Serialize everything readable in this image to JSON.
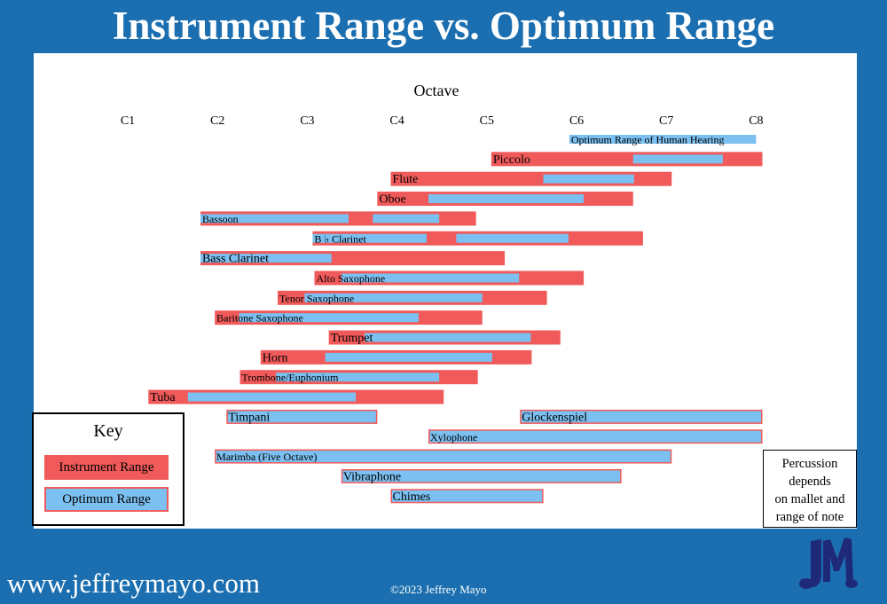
{
  "title": "Instrument Range vs. Optimum Range",
  "footer": {
    "url": "www.jeffreymayo.com",
    "copyright": "©2023 Jeffrey Mayo"
  },
  "key": {
    "title": "Key",
    "instrument_label": "Instrument Range",
    "optimum_label": "Optimum Range"
  },
  "percussion_note": [
    "Percussion",
    "depends",
    "on mallet and",
    "range of note"
  ],
  "colors": {
    "background": "#1b6fb0",
    "instrument": "#f05a5a",
    "optimum": "#7bc0f0",
    "text": "#000000"
  },
  "chart_data": {
    "type": "bar",
    "orientation": "horizontal-range",
    "xlabel": "Octave",
    "xticks": [
      "C1",
      "C2",
      "C3",
      "C4",
      "C5",
      "C6",
      "C7",
      "C8"
    ],
    "xlim": [
      1,
      8
    ],
    "units": "octave (C1 = 1, C8 = 8)",
    "rows": [
      {
        "name": "Optimum Range of Human Hearing",
        "instrument": null,
        "optimum": [
          [
            5.92,
            8.0
          ]
        ]
      },
      {
        "name": "Piccolo",
        "instrument": [
          5.05,
          8.07
        ],
        "optimum": [
          [
            6.63,
            7.63
          ]
        ]
      },
      {
        "name": "Flute",
        "instrument": [
          3.93,
          7.06
        ],
        "optimum": [
          [
            5.63,
            6.64
          ]
        ]
      },
      {
        "name": "Oboe",
        "instrument": [
          3.78,
          6.63
        ],
        "optimum": [
          [
            4.35,
            6.08
          ]
        ]
      },
      {
        "name": "Bassoon",
        "instrument": [
          1.81,
          4.88
        ],
        "optimum": [
          [
            1.81,
            3.46
          ],
          [
            3.73,
            4.47
          ]
        ]
      },
      {
        "name": "B ♭ Clarinet",
        "instrument": [
          3.06,
          6.74
        ],
        "optimum": [
          [
            3.06,
            4.33
          ],
          [
            4.66,
            5.91
          ]
        ]
      },
      {
        "name": "Bass Clarinet",
        "instrument": [
          1.81,
          5.2
        ],
        "optimum": [
          [
            1.81,
            3.27
          ]
        ]
      },
      {
        "name": "Alto Saxophone",
        "instrument": [
          3.08,
          6.08
        ],
        "optimum": [
          [
            3.38,
            5.36
          ]
        ]
      },
      {
        "name": "Tenor Saxophone",
        "instrument": [
          2.67,
          5.67
        ],
        "optimum": [
          [
            2.97,
            4.95
          ]
        ]
      },
      {
        "name": "Baritone Saxophone",
        "instrument": [
          1.97,
          4.95
        ],
        "optimum": [
          [
            2.24,
            4.24
          ]
        ]
      },
      {
        "name": "Trumpet",
        "instrument": [
          3.24,
          5.82
        ],
        "optimum": [
          [
            3.64,
            5.49
          ]
        ]
      },
      {
        "name": "Horn",
        "instrument": [
          2.48,
          5.5
        ],
        "optimum": [
          [
            3.2,
            5.06
          ]
        ]
      },
      {
        "name": "Trombone/Euphonium",
        "instrument": [
          2.25,
          4.9
        ],
        "optimum": [
          [
            2.65,
            4.47
          ]
        ]
      },
      {
        "name": "Tuba",
        "instrument": [
          1.23,
          4.52
        ],
        "optimum": [
          [
            1.67,
            3.54
          ]
        ]
      },
      {
        "name": "Timpani",
        "instrument": [
          2.1,
          3.78
        ],
        "optimum": [
          [
            2.1,
            3.78
          ]
        ],
        "percussion": true
      },
      {
        "name": "Glockenspiel",
        "instrument": [
          5.37,
          8.07
        ],
        "optimum": [
          [
            5.37,
            8.07
          ]
        ],
        "percussion": true
      },
      {
        "name": "Xylophone",
        "instrument": [
          4.35,
          8.07
        ],
        "optimum": [
          [
            4.35,
            8.07
          ]
        ],
        "percussion": true
      },
      {
        "name": "Marimba (Five Octave)",
        "instrument": [
          1.97,
          7.06
        ],
        "optimum": [
          [
            1.97,
            7.06
          ]
        ],
        "percussion": true
      },
      {
        "name": "Vibraphone",
        "instrument": [
          3.38,
          6.5
        ],
        "optimum": [
          [
            3.38,
            6.5
          ]
        ],
        "percussion": true
      },
      {
        "name": "Chimes",
        "instrument": [
          3.93,
          5.63
        ],
        "optimum": [
          [
            3.93,
            5.63
          ]
        ],
        "percussion": true
      }
    ]
  }
}
